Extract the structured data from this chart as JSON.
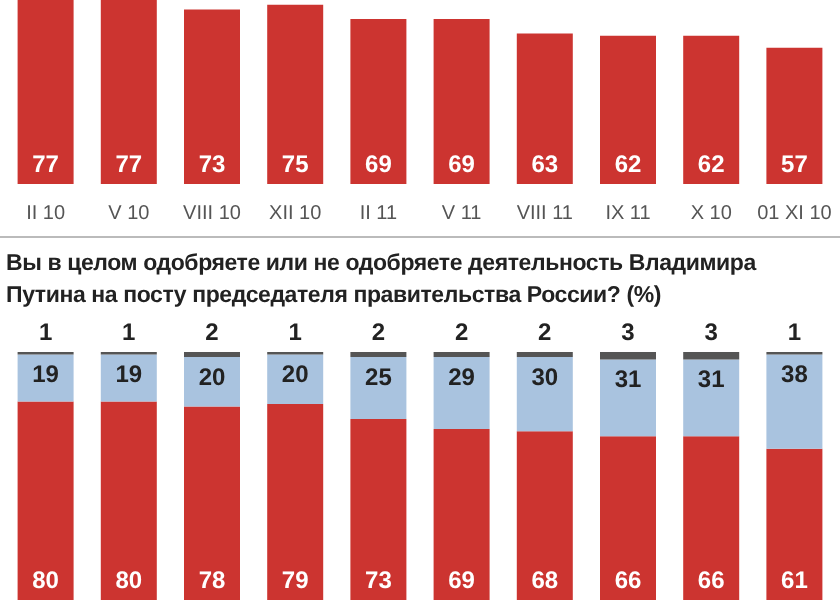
{
  "chart_data": [
    {
      "type": "bar",
      "categories": [
        "II 10",
        "V 10",
        "VIII 10",
        "XII 10",
        "II 11",
        "V 11",
        "VIII 11",
        "IX 11",
        "X 10",
        "01 XI 10"
      ],
      "series": [
        {
          "color": "#cc3430",
          "values": [
            77,
            77,
            73,
            75,
            69,
            69,
            63,
            62,
            62,
            57
          ]
        }
      ],
      "data_labels": true
    },
    {
      "type": "bar",
      "title": "Вы в целом одобряете или не одобряете деятельность Владимира Путина на посту председателя правительства России? (%)",
      "stacked": true,
      "categories": [
        null,
        null,
        null,
        null,
        null,
        null,
        null,
        null,
        null,
        null
      ],
      "series": [
        {
          "color": "#cc3430",
          "values": [
            80,
            80,
            78,
            79,
            73,
            69,
            68,
            66,
            66,
            61
          ]
        },
        {
          "color": "#a9c3df",
          "values": [
            19,
            19,
            20,
            20,
            25,
            29,
            30,
            31,
            31,
            38
          ]
        },
        {
          "color": "#555555",
          "values": [
            1,
            1,
            2,
            1,
            2,
            2,
            2,
            3,
            3,
            1
          ]
        }
      ],
      "data_labels": true
    }
  ]
}
